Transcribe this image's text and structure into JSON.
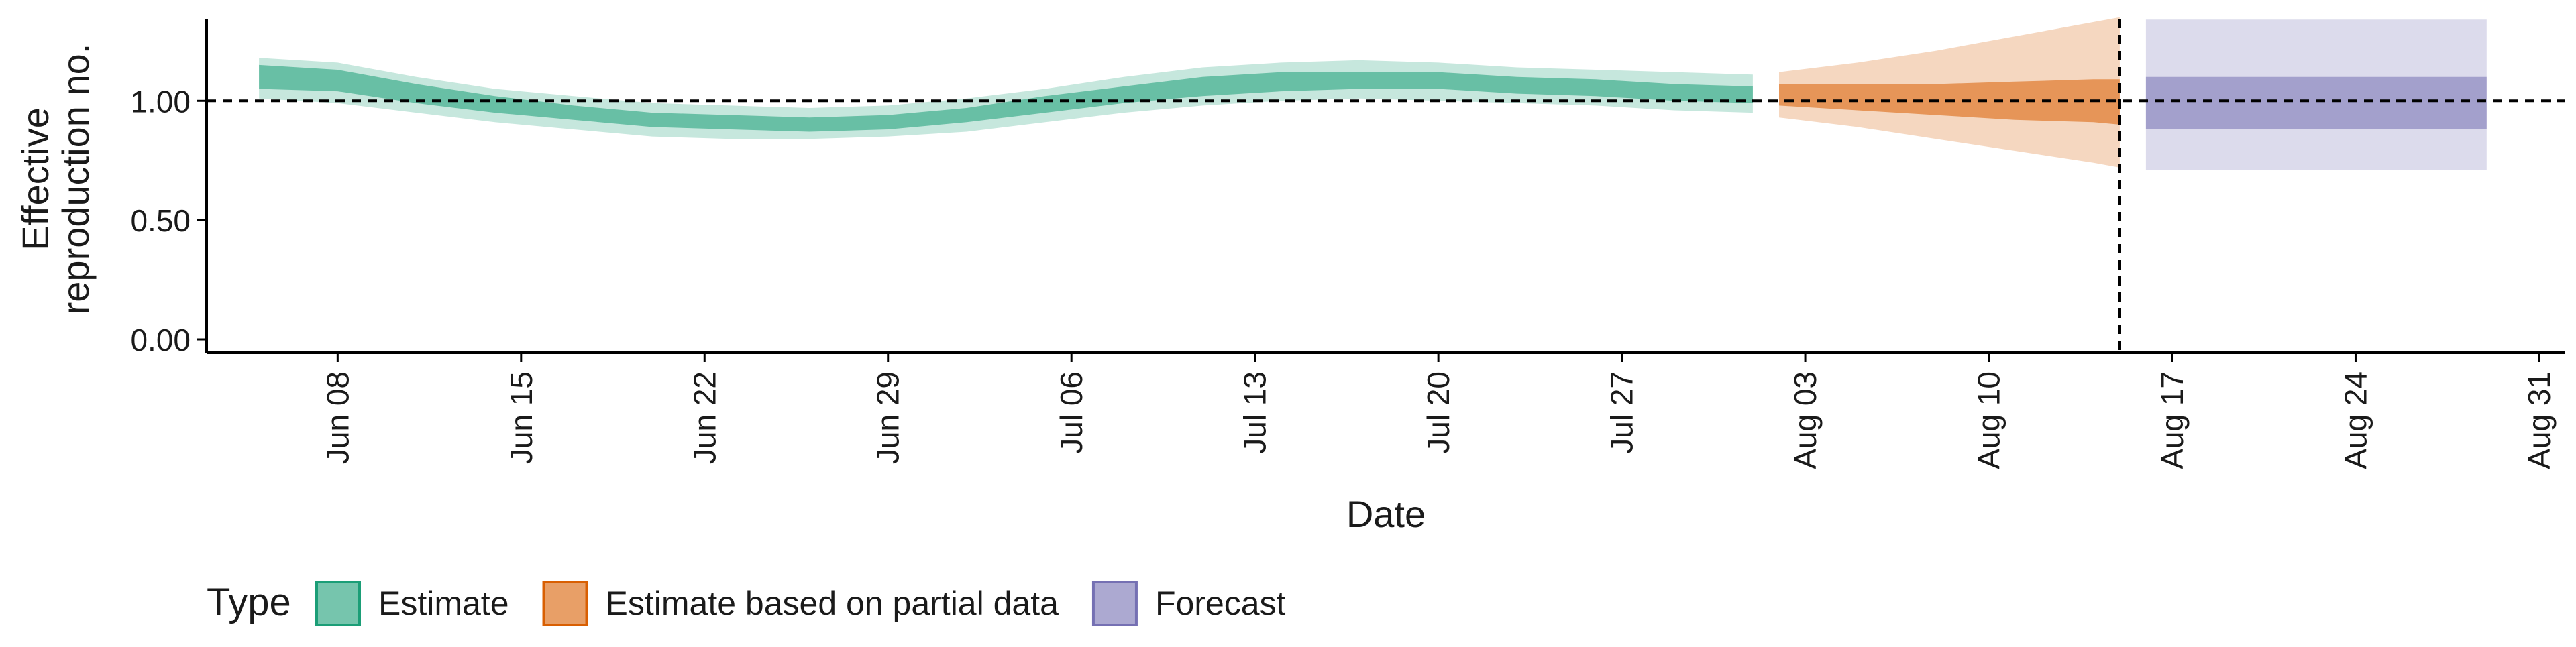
{
  "chart_data": {
    "type": "area",
    "title": "",
    "xlabel": "Date",
    "ylabel": "Effective\nreproduction no.",
    "x_range": [
      "2020-06-03",
      "2020-09-01"
    ],
    "ylim": [
      0,
      1.4
    ],
    "y_ticks": [
      0.0,
      0.5,
      1.0
    ],
    "y_tick_labels": [
      "0.00",
      "0.50",
      "1.00"
    ],
    "x_ticks": [
      "2020-06-08",
      "2020-06-15",
      "2020-06-22",
      "2020-06-29",
      "2020-07-06",
      "2020-07-13",
      "2020-07-20",
      "2020-07-27",
      "2020-08-03",
      "2020-08-10",
      "2020-08-17",
      "2020-08-24",
      "2020-08-31"
    ],
    "x_tick_labels": [
      "Jun 08",
      "Jun 15",
      "Jun 22",
      "Jun 29",
      "Jul 06",
      "Jul 13",
      "Jul 20",
      "Jul 27",
      "Aug 03",
      "Aug 10",
      "Aug 17",
      "Aug 24",
      "Aug 31"
    ],
    "reference_lines": {
      "horizontal_y": 1.0,
      "vertical_x": "2020-08-15"
    },
    "legend": {
      "title": "Type",
      "position": "bottom",
      "items": [
        {
          "label": "Estimate",
          "color": "#1b9e77"
        },
        {
          "label": "Estimate based on partial data",
          "color": "#d95f02"
        },
        {
          "label": "Forecast",
          "color": "#7570b3"
        }
      ]
    },
    "series": [
      {
        "name": "Estimate",
        "color": "#1b9e77",
        "points": [
          {
            "x": "2020-06-05",
            "median": 1.12,
            "lower50": 1.05,
            "upper50": 1.15,
            "lower90": 1.01,
            "upper90": 1.18
          },
          {
            "x": "2020-06-08",
            "median": 1.09,
            "lower50": 1.04,
            "upper50": 1.13,
            "lower90": 0.99,
            "upper90": 1.16
          },
          {
            "x": "2020-06-11",
            "median": 1.03,
            "lower50": 0.99,
            "upper50": 1.07,
            "lower90": 0.95,
            "upper90": 1.1
          },
          {
            "x": "2020-06-14",
            "median": 0.98,
            "lower50": 0.95,
            "upper50": 1.02,
            "lower90": 0.91,
            "upper90": 1.05
          },
          {
            "x": "2020-06-17",
            "median": 0.95,
            "lower50": 0.92,
            "upper50": 0.98,
            "lower90": 0.88,
            "upper90": 1.02
          },
          {
            "x": "2020-06-20",
            "median": 0.92,
            "lower50": 0.89,
            "upper50": 0.95,
            "lower90": 0.85,
            "upper90": 0.99
          },
          {
            "x": "2020-06-23",
            "median": 0.91,
            "lower50": 0.88,
            "upper50": 0.94,
            "lower90": 0.84,
            "upper90": 0.98
          },
          {
            "x": "2020-06-26",
            "median": 0.9,
            "lower50": 0.87,
            "upper50": 0.93,
            "lower90": 0.84,
            "upper90": 0.97
          },
          {
            "x": "2020-06-29",
            "median": 0.91,
            "lower50": 0.88,
            "upper50": 0.94,
            "lower90": 0.85,
            "upper90": 0.98
          },
          {
            "x": "2020-07-02",
            "median": 0.94,
            "lower50": 0.91,
            "upper50": 0.97,
            "lower90": 0.87,
            "upper90": 1.01
          },
          {
            "x": "2020-07-05",
            "median": 0.98,
            "lower50": 0.95,
            "upper50": 1.02,
            "lower90": 0.91,
            "upper90": 1.05
          },
          {
            "x": "2020-07-08",
            "median": 1.02,
            "lower50": 0.99,
            "upper50": 1.06,
            "lower90": 0.95,
            "upper90": 1.1
          },
          {
            "x": "2020-07-11",
            "median": 1.06,
            "lower50": 1.02,
            "upper50": 1.1,
            "lower90": 0.98,
            "upper90": 1.14
          },
          {
            "x": "2020-07-14",
            "median": 1.08,
            "lower50": 1.04,
            "upper50": 1.12,
            "lower90": 1.0,
            "upper90": 1.16
          },
          {
            "x": "2020-07-17",
            "median": 1.09,
            "lower50": 1.05,
            "upper50": 1.12,
            "lower90": 1.01,
            "upper90": 1.17
          },
          {
            "x": "2020-07-20",
            "median": 1.09,
            "lower50": 1.05,
            "upper50": 1.12,
            "lower90": 1.0,
            "upper90": 1.16
          },
          {
            "x": "2020-07-23",
            "median": 1.07,
            "lower50": 1.03,
            "upper50": 1.1,
            "lower90": 0.99,
            "upper90": 1.14
          },
          {
            "x": "2020-07-26",
            "median": 1.06,
            "lower50": 1.02,
            "upper50": 1.09,
            "lower90": 0.98,
            "upper90": 1.13
          },
          {
            "x": "2020-07-29",
            "median": 1.04,
            "lower50": 1.0,
            "upper50": 1.07,
            "lower90": 0.96,
            "upper90": 1.12
          },
          {
            "x": "2020-08-01",
            "median": 1.03,
            "lower50": 0.99,
            "upper50": 1.06,
            "lower90": 0.95,
            "upper90": 1.11
          }
        ]
      },
      {
        "name": "Estimate based on partial data",
        "color": "#d95f02",
        "points": [
          {
            "x": "2020-08-02",
            "median": 1.02,
            "lower50": 0.98,
            "upper50": 1.07,
            "lower90": 0.93,
            "upper90": 1.12
          },
          {
            "x": "2020-08-05",
            "median": 1.01,
            "lower50": 0.96,
            "upper50": 1.07,
            "lower90": 0.89,
            "upper90": 1.16
          },
          {
            "x": "2020-08-08",
            "median": 1.0,
            "lower50": 0.94,
            "upper50": 1.07,
            "lower90": 0.84,
            "upper90": 1.21
          },
          {
            "x": "2020-08-11",
            "median": 0.99,
            "lower50": 0.92,
            "upper50": 1.08,
            "lower90": 0.79,
            "upper90": 1.27
          },
          {
            "x": "2020-08-14",
            "median": 0.98,
            "lower50": 0.91,
            "upper50": 1.09,
            "lower90": 0.74,
            "upper90": 1.33
          },
          {
            "x": "2020-08-15",
            "median": 0.98,
            "lower50": 0.9,
            "upper50": 1.09,
            "lower90": 0.72,
            "upper90": 1.35
          }
        ]
      },
      {
        "name": "Forecast",
        "color": "#7570b3",
        "points": [
          {
            "x": "2020-08-16",
            "median": 0.99,
            "lower50": 0.88,
            "upper50": 1.1,
            "lower90": 0.71,
            "upper90": 1.34
          },
          {
            "x": "2020-08-29",
            "median": 0.99,
            "lower50": 0.88,
            "upper50": 1.1,
            "lower90": 0.71,
            "upper90": 1.34
          }
        ]
      }
    ]
  }
}
